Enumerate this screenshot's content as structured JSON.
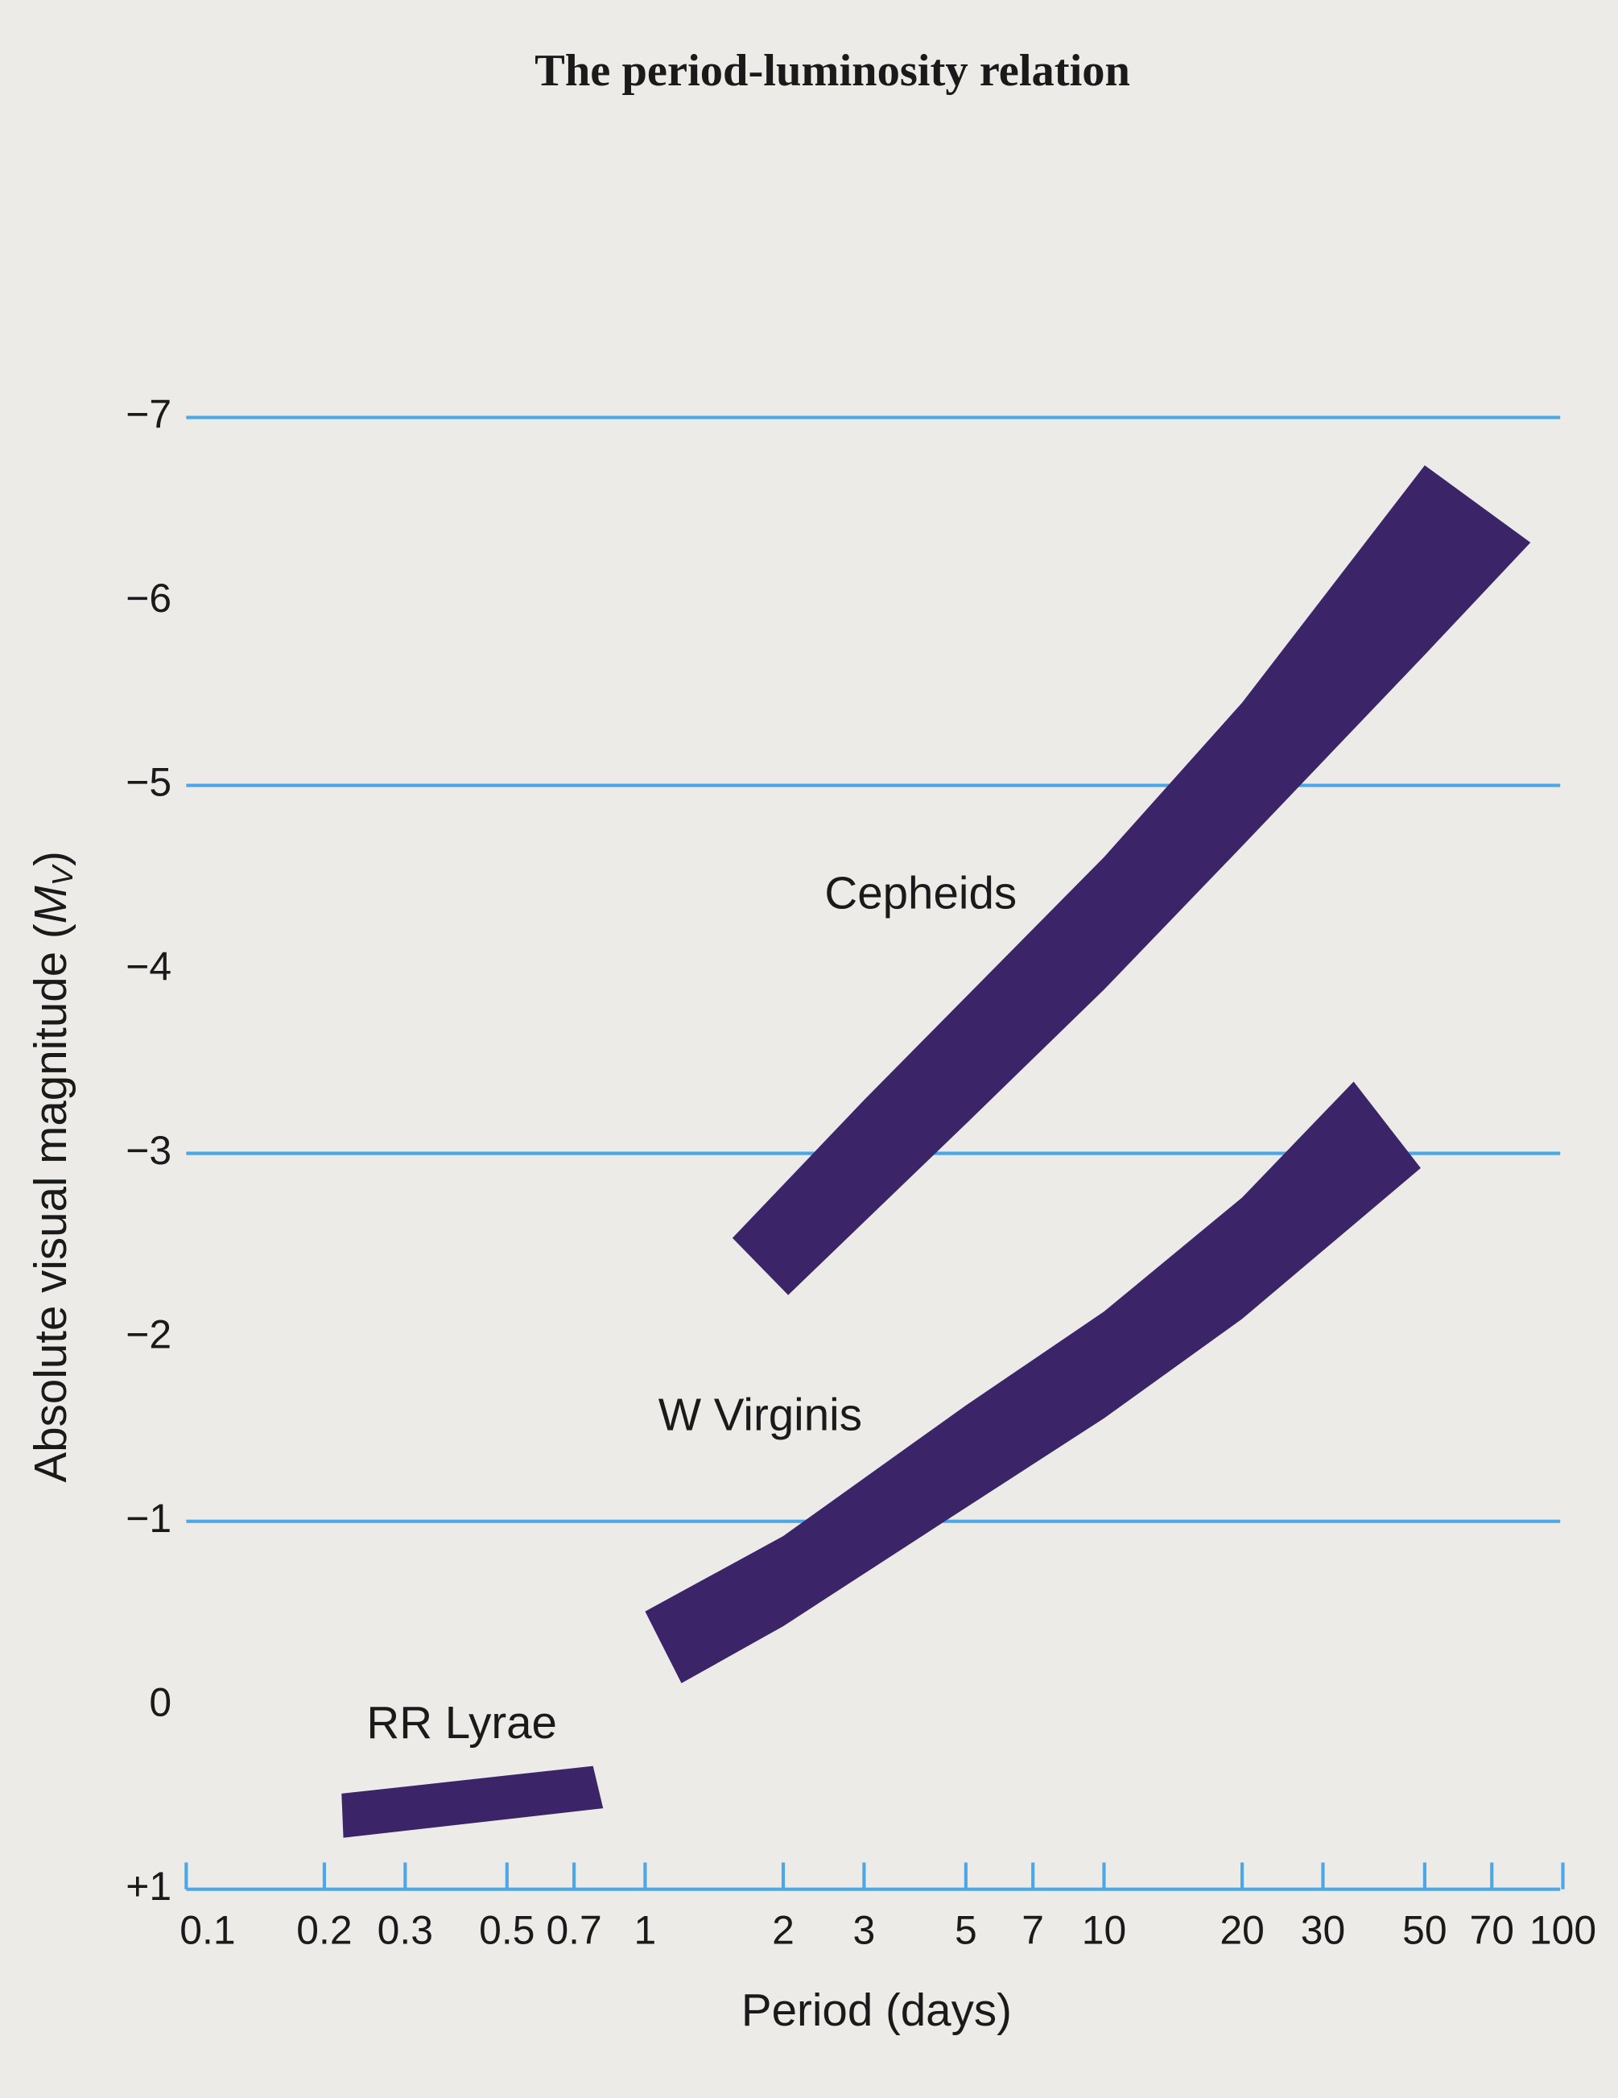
{
  "chart_data": {
    "type": "band",
    "title": "The period-luminosity relation",
    "xlabel": "Period (days)",
    "ylabel": [
      "Absolute visual magnitude (",
      "M",
      "V",
      ")"
    ],
    "xscale": "log",
    "xlim": [
      0.1,
      100
    ],
    "xticks": [
      0.1,
      0.2,
      0.3,
      0.5,
      0.7,
      1,
      2,
      3,
      5,
      7,
      10,
      20,
      30,
      50,
      70,
      100
    ],
    "ylim": [
      1,
      -7
    ],
    "yticks": [
      {
        "value": -7,
        "label": "−7"
      },
      {
        "value": -6,
        "label": "−6"
      },
      {
        "value": -5,
        "label": "−5"
      },
      {
        "value": -4,
        "label": "−4"
      },
      {
        "value": -3,
        "label": "−3"
      },
      {
        "value": -2,
        "label": "−2"
      },
      {
        "value": -1,
        "label": "−1"
      },
      0,
      {
        "value": 1,
        "label": "+1"
      }
    ],
    "grid": [
      -7,
      -5,
      -3,
      -1
    ],
    "grid_color": "#4aa8e8",
    "series": [
      {
        "name": "Cepheids",
        "color": "#3b2468",
        "upper": {
          "x": [
            1.55,
            3,
            10,
            20,
            50
          ],
          "values": [
            -2.54,
            -3.29,
            -4.61,
            -5.45,
            -6.74
          ]
        },
        "lower": {
          "x": [
            2.05,
            5,
            10,
            20,
            50,
            85
          ],
          "values": [
            -2.23,
            -3.16,
            -3.89,
            -4.67,
            -5.71,
            -6.32
          ]
        }
      },
      {
        "name": "W Virginis",
        "color": "#3b2468",
        "upper": {
          "x": [
            1,
            2,
            5,
            10,
            20,
            35
          ],
          "values": [
            -0.51,
            -0.92,
            -1.63,
            -2.14,
            -2.76,
            -3.39
          ]
        },
        "lower": {
          "x": [
            1.2,
            2,
            4.5,
            10,
            20,
            49
          ],
          "values": [
            -0.12,
            -0.43,
            -1.0,
            -1.56,
            -2.1,
            -2.92
          ]
        }
      },
      {
        "name": "RR Lyrae",
        "color": "#3b2468",
        "upper": {
          "x": [
            0.218,
            0.77
          ],
          "values": [
            0.48,
            0.33
          ]
        },
        "lower": {
          "x": [
            0.22,
            0.81
          ],
          "values": [
            0.72,
            0.56
          ]
        }
      }
    ]
  }
}
